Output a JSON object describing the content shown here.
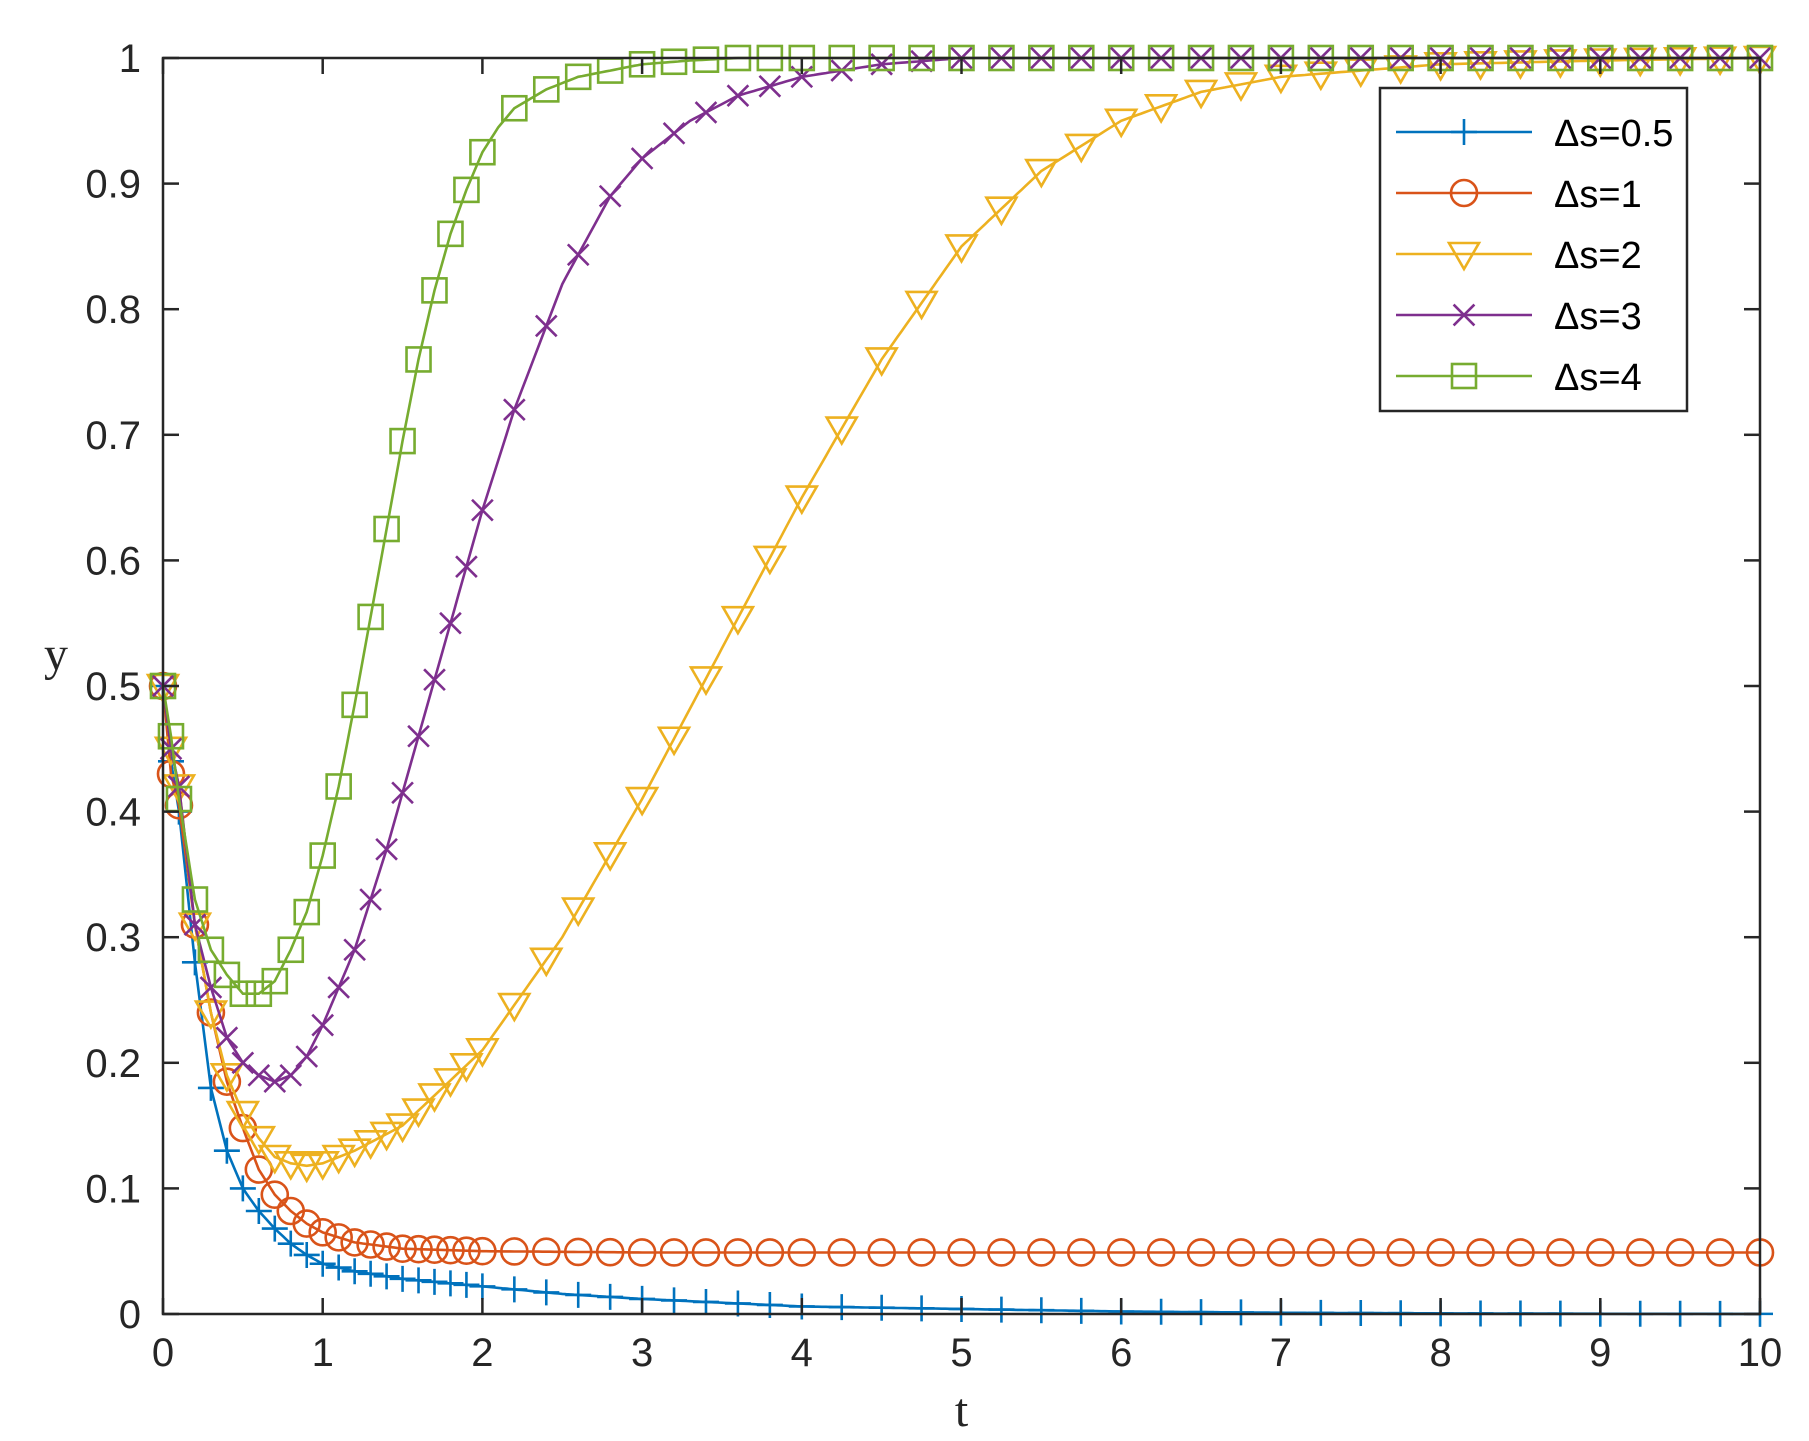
{
  "chart_data": {
    "type": "line",
    "title": "",
    "xlabel": "t",
    "ylabel": "y",
    "xlim": [
      0,
      10
    ],
    "ylim": [
      0,
      1
    ],
    "xticks": [
      0,
      1,
      2,
      3,
      4,
      5,
      6,
      7,
      8,
      9,
      10
    ],
    "yticks": [
      0,
      0.1,
      0.2,
      0.3,
      0.4,
      0.5,
      0.6,
      0.7,
      0.8,
      0.9,
      1
    ],
    "legend_position": "top-right",
    "grid": false,
    "series": [
      {
        "name": "Δs=0.5",
        "marker": "plus",
        "color": "#0072BD",
        "x": [
          0,
          0.05,
          0.1,
          0.2,
          0.3,
          0.4,
          0.5,
          0.6,
          0.7,
          0.8,
          0.9,
          1.0,
          1.2,
          1.5,
          2.0,
          2.5,
          3.0,
          3.5,
          4.0,
          4.5,
          5.0,
          6.0,
          7.0,
          8.0,
          9.0,
          10.0
        ],
        "y": [
          0.5,
          0.44,
          0.4,
          0.28,
          0.18,
          0.13,
          0.1,
          0.082,
          0.068,
          0.056,
          0.047,
          0.04,
          0.034,
          0.028,
          0.022,
          0.016,
          0.012,
          0.009,
          0.006,
          0.005,
          0.004,
          0.002,
          0.001,
          0.0005,
          0.0002,
          0.0001
        ]
      },
      {
        "name": "Δs=1",
        "marker": "circle",
        "color": "#D95319",
        "x": [
          0,
          0.05,
          0.1,
          0.2,
          0.3,
          0.4,
          0.5,
          0.6,
          0.7,
          0.8,
          0.9,
          1.0,
          1.2,
          1.5,
          2.0,
          3.0,
          4.0,
          5.0,
          6.0,
          7.0,
          8.0,
          9.0,
          10.0
        ],
        "y": [
          0.5,
          0.43,
          0.405,
          0.31,
          0.24,
          0.185,
          0.148,
          0.115,
          0.095,
          0.082,
          0.072,
          0.065,
          0.057,
          0.052,
          0.05,
          0.049,
          0.049,
          0.049,
          0.049,
          0.049,
          0.049,
          0.049,
          0.049
        ]
      },
      {
        "name": "Δs=2",
        "marker": "triangle-down",
        "color": "#EDB120",
        "x": [
          0,
          0.05,
          0.1,
          0.2,
          0.3,
          0.4,
          0.5,
          0.6,
          0.7,
          0.8,
          0.9,
          1.0,
          1.2,
          1.5,
          2.0,
          2.5,
          3.0,
          3.5,
          4.0,
          4.5,
          5.0,
          5.5,
          6.0,
          6.5,
          7.0,
          7.5,
          8.0,
          9.0,
          10.0
        ],
        "y": [
          0.5,
          0.45,
          0.42,
          0.31,
          0.24,
          0.19,
          0.16,
          0.14,
          0.125,
          0.12,
          0.118,
          0.12,
          0.13,
          0.15,
          0.21,
          0.3,
          0.41,
          0.53,
          0.65,
          0.76,
          0.85,
          0.91,
          0.95,
          0.973,
          0.985,
          0.99,
          0.995,
          0.998,
          1.0
        ]
      },
      {
        "name": "Δs=3",
        "marker": "cross",
        "color": "#7E2F8E",
        "x": [
          0,
          0.05,
          0.1,
          0.2,
          0.3,
          0.4,
          0.5,
          0.6,
          0.7,
          0.8,
          0.9,
          1.0,
          1.2,
          1.4,
          1.6,
          1.8,
          2.0,
          2.2,
          2.5,
          2.8,
          3.0,
          3.3,
          3.6,
          4.0,
          4.5,
          5.0,
          6.0,
          7.0,
          8.0,
          9.0,
          10.0
        ],
        "y": [
          0.5,
          0.45,
          0.42,
          0.31,
          0.26,
          0.22,
          0.2,
          0.19,
          0.185,
          0.19,
          0.205,
          0.23,
          0.29,
          0.37,
          0.46,
          0.55,
          0.64,
          0.72,
          0.82,
          0.89,
          0.92,
          0.95,
          0.97,
          0.985,
          0.995,
          1.0,
          1.0,
          1.0,
          1.0,
          1.0,
          1.0
        ]
      },
      {
        "name": "Δs=4",
        "marker": "square",
        "color": "#77AC30",
        "x": [
          0,
          0.05,
          0.1,
          0.2,
          0.3,
          0.4,
          0.5,
          0.6,
          0.7,
          0.8,
          0.9,
          1.0,
          1.1,
          1.2,
          1.3,
          1.4,
          1.5,
          1.6,
          1.7,
          1.8,
          1.9,
          2.0,
          2.1,
          2.2,
          2.4,
          2.6,
          2.8,
          3.0,
          3.3,
          3.6,
          4.0,
          5.0,
          6.0,
          7.0,
          8.0,
          9.0,
          10.0
        ],
        "y": [
          0.5,
          0.46,
          0.41,
          0.33,
          0.29,
          0.27,
          0.255,
          0.255,
          0.265,
          0.29,
          0.32,
          0.365,
          0.42,
          0.485,
          0.555,
          0.625,
          0.695,
          0.76,
          0.815,
          0.86,
          0.895,
          0.925,
          0.945,
          0.96,
          0.975,
          0.985,
          0.99,
          0.995,
          0.998,
          1.0,
          1.0,
          1.0,
          1.0,
          1.0,
          1.0,
          1.0,
          1.0
        ]
      }
    ]
  }
}
